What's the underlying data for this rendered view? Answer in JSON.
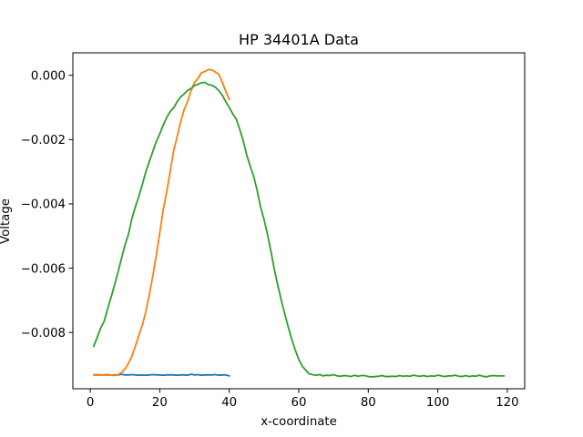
{
  "chart_data": {
    "type": "line",
    "title": "HP 34401A Data",
    "xlabel": "x-coordinate",
    "ylabel": "Voltage",
    "xlim": [
      -5,
      125
    ],
    "ylim": [
      -0.00975,
      0.0007
    ],
    "xticks": [
      0,
      20,
      40,
      60,
      80,
      100,
      120
    ],
    "yticks": [
      0.0,
      -0.002,
      -0.004,
      -0.006,
      -0.008
    ],
    "xtick_labels": [
      "0",
      "20",
      "40",
      "60",
      "80",
      "100",
      "120"
    ],
    "ytick_labels": [
      "0.000",
      "−0.002",
      "−0.004",
      "−0.006",
      "−0.008"
    ],
    "grid": false,
    "series": [
      {
        "color": "#1f77b4",
        "x": [
          1,
          2,
          3,
          4,
          5,
          6,
          7,
          8,
          9,
          10,
          11,
          12,
          13,
          14,
          15,
          16,
          17,
          18,
          19,
          20,
          21,
          22,
          23,
          24,
          25,
          26,
          27,
          28,
          29,
          30,
          31,
          32,
          33,
          34,
          35,
          36,
          37,
          38,
          39,
          40
        ],
        "y": [
          -0.00932,
          -0.00931,
          -0.00932,
          -0.00932,
          -0.00931,
          -0.00933,
          -0.00932,
          -0.00932,
          -0.0093,
          -0.00932,
          -0.00932,
          -0.00931,
          -0.00932,
          -0.00933,
          -0.00932,
          -0.00933,
          -0.00932,
          -0.00931,
          -0.00932,
          -0.00932,
          -0.00933,
          -0.00932,
          -0.00932,
          -0.00932,
          -0.00933,
          -0.00932,
          -0.00932,
          -0.00933,
          -0.0093,
          -0.00932,
          -0.00931,
          -0.00933,
          -0.00932,
          -0.00932,
          -0.00932,
          -0.00931,
          -0.00933,
          -0.00932,
          -0.00932,
          -0.00935
        ]
      },
      {
        "color": "#ff7f0e",
        "x": [
          1,
          2,
          3,
          4,
          5,
          6,
          7,
          8,
          9,
          10,
          11,
          12,
          13,
          14,
          15,
          16,
          17,
          18,
          19,
          20,
          21,
          22,
          23,
          24,
          25,
          26,
          27,
          28,
          29,
          30,
          31,
          32,
          33,
          34,
          35,
          36,
          37,
          38,
          39,
          40
        ],
        "y": [
          -0.00932,
          -0.00933,
          -0.00932,
          -0.00932,
          -0.00933,
          -0.00932,
          -0.00934,
          -0.00931,
          -0.00925,
          -0.00913,
          -0.00896,
          -0.00873,
          -0.00842,
          -0.00808,
          -0.00777,
          -0.00735,
          -0.00683,
          -0.00624,
          -0.0056,
          -0.0049,
          -0.00418,
          -0.00362,
          -0.003,
          -0.00235,
          -0.00191,
          -0.00146,
          -0.00107,
          -0.00082,
          -0.00048,
          -0.00022,
          -0.0001,
          8e-05,
          0.00012,
          0.00018,
          0.00017,
          0.0001,
          3e-05,
          -0.00022,
          -0.0005,
          -0.00075
        ]
      },
      {
        "color": "#2ca02c",
        "x": [
          1,
          2,
          3,
          4,
          5,
          6,
          7,
          8,
          9,
          10,
          11,
          12,
          13,
          14,
          15,
          16,
          17,
          18,
          19,
          20,
          21,
          22,
          23,
          24,
          25,
          26,
          27,
          28,
          29,
          30,
          31,
          32,
          33,
          34,
          35,
          36,
          37,
          38,
          39,
          40,
          41,
          42,
          43,
          44,
          45,
          46,
          47,
          48,
          49,
          50,
          51,
          52,
          53,
          54,
          55,
          56,
          57,
          58,
          59,
          60,
          61,
          62,
          63,
          64,
          65,
          66,
          67,
          68,
          69,
          70,
          71,
          72,
          73,
          74,
          75,
          76,
          77,
          78,
          79,
          80,
          81,
          82,
          83,
          84,
          85,
          86,
          87,
          88,
          89,
          90,
          91,
          92,
          93,
          94,
          95,
          96,
          97,
          98,
          99,
          100,
          101,
          102,
          103,
          104,
          105,
          106,
          107,
          108,
          109,
          110,
          111,
          112,
          113,
          114,
          115,
          116,
          117,
          118,
          119
        ],
        "y": [
          -0.00843,
          -0.00815,
          -0.00786,
          -0.00765,
          -0.00727,
          -0.0069,
          -0.00652,
          -0.00612,
          -0.00569,
          -0.00528,
          -0.00494,
          -0.00445,
          -0.00408,
          -0.00376,
          -0.00339,
          -0.003,
          -0.00268,
          -0.00237,
          -0.00206,
          -0.00182,
          -0.00155,
          -0.00131,
          -0.00113,
          -0.00101,
          -0.00082,
          -0.00067,
          -0.00058,
          -0.00047,
          -0.00041,
          -0.00032,
          -0.00028,
          -0.00023,
          -0.00022,
          -0.00029,
          -0.00031,
          -0.00037,
          -0.00048,
          -0.00062,
          -0.00082,
          -0.001,
          -0.0012,
          -0.00136,
          -0.00168,
          -0.00203,
          -0.00247,
          -0.00282,
          -0.00313,
          -0.00357,
          -0.0041,
          -0.00448,
          -0.00495,
          -0.00548,
          -0.00606,
          -0.00655,
          -0.00701,
          -0.00744,
          -0.00784,
          -0.00822,
          -0.00855,
          -0.00884,
          -0.00905,
          -0.00917,
          -0.00929,
          -0.00931,
          -0.00933,
          -0.00931,
          -0.00935,
          -0.00933,
          -0.00934,
          -0.00931,
          -0.00935,
          -0.00936,
          -0.00934,
          -0.00935,
          -0.00937,
          -0.00933,
          -0.00936,
          -0.00934,
          -0.00934,
          -0.00937,
          -0.00938,
          -0.00937,
          -0.00936,
          -0.00934,
          -0.00937,
          -0.00937,
          -0.00936,
          -0.00937,
          -0.00934,
          -0.00936,
          -0.00935,
          -0.00936,
          -0.00933,
          -0.00935,
          -0.00936,
          -0.00934,
          -0.00937,
          -0.00935,
          -0.00936,
          -0.00933,
          -0.00935,
          -0.00937,
          -0.00935,
          -0.00935,
          -0.00933,
          -0.00936,
          -0.00937,
          -0.00934,
          -0.00937,
          -0.00935,
          -0.00936,
          -0.00933,
          -0.00936,
          -0.00938,
          -0.00935,
          -0.00934,
          -0.00935,
          -0.00935,
          -0.00935
        ]
      }
    ]
  }
}
